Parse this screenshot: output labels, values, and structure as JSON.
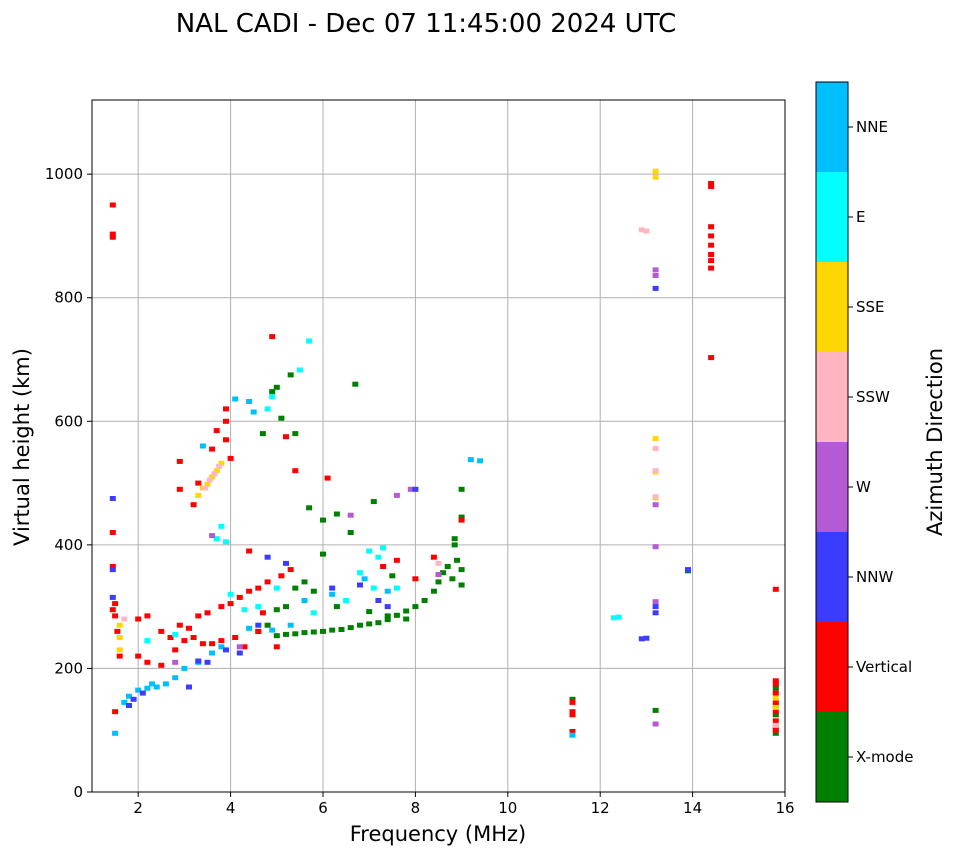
{
  "chart_data": {
    "type": "scatter",
    "title": "NAL CADI - Dec 07 11:45:00 2024 UTC",
    "xlabel": "Frequency (MHz)",
    "ylabel": "Virtual height (km)",
    "xlim": [
      1,
      16
    ],
    "ylim": [
      0,
      1120
    ],
    "xticks": [
      2,
      4,
      6,
      8,
      10,
      12,
      14,
      16
    ],
    "yticks": [
      0,
      200,
      400,
      600,
      800,
      1000
    ],
    "grid": true,
    "colorbar": {
      "label": "Azimuth Direction",
      "categories": [
        {
          "name": "NNE",
          "color": "#00bfff"
        },
        {
          "name": "E",
          "color": "#00ffff"
        },
        {
          "name": "SSE",
          "color": "#ffd700"
        },
        {
          "name": "SSW",
          "color": "#ffb6c1"
        },
        {
          "name": "W",
          "color": "#b45ad2"
        },
        {
          "name": "NNW",
          "color": "#3c3cff"
        },
        {
          "name": "Vertical",
          "color": "#ff0000"
        },
        {
          "name": "X-mode",
          "color": "#008000"
        }
      ]
    },
    "series": [
      {
        "name": "X-mode",
        "points": [
          [
            5.0,
            253
          ],
          [
            5.2,
            255
          ],
          [
            5.4,
            256
          ],
          [
            5.6,
            258
          ],
          [
            5.8,
            259
          ],
          [
            6.0,
            260
          ],
          [
            6.2,
            262
          ],
          [
            6.4,
            263
          ],
          [
            6.6,
            266
          ],
          [
            6.8,
            270
          ],
          [
            7.0,
            272
          ],
          [
            7.2,
            274
          ],
          [
            7.4,
            279
          ],
          [
            7.6,
            286
          ],
          [
            7.8,
            293
          ],
          [
            8.0,
            300
          ],
          [
            8.2,
            310
          ],
          [
            8.4,
            325
          ],
          [
            8.5,
            340
          ],
          [
            8.6,
            355
          ],
          [
            8.7,
            365
          ],
          [
            8.8,
            345
          ],
          [
            8.9,
            375
          ],
          [
            9.0,
            360
          ],
          [
            9.0,
            335
          ],
          [
            8.85,
            400
          ],
          [
            8.85,
            410
          ],
          [
            4.6,
            260
          ],
          [
            4.8,
            270
          ],
          [
            5.0,
            295
          ],
          [
            5.2,
            300
          ],
          [
            5.4,
            330
          ],
          [
            5.6,
            340
          ],
          [
            5.8,
            325
          ],
          [
            6.0,
            385
          ],
          [
            6.3,
            300
          ],
          [
            6.6,
            420
          ],
          [
            7.0,
            292
          ],
          [
            7.4,
            285
          ],
          [
            7.8,
            280
          ],
          [
            5.3,
            675
          ],
          [
            6.7,
            660
          ],
          [
            4.9,
            648
          ],
          [
            5.0,
            655
          ],
          [
            5.1,
            605
          ],
          [
            4.7,
            580
          ],
          [
            5.4,
            580
          ],
          [
            5.7,
            460
          ],
          [
            6.0,
            440
          ],
          [
            6.3,
            450
          ],
          [
            7.1,
            470
          ],
          [
            7.5,
            350
          ],
          [
            9.0,
            490
          ],
          [
            9.0,
            445
          ],
          [
            13.9,
            358
          ],
          [
            11.4,
            150
          ],
          [
            13.2,
            132
          ],
          [
            15.8,
            168
          ],
          [
            15.8,
            140
          ],
          [
            15.8,
            125
          ],
          [
            15.8,
            95
          ]
        ]
      },
      {
        "name": "Vertical",
        "points": [
          [
            1.45,
            950
          ],
          [
            1.45,
            903
          ],
          [
            1.45,
            898
          ],
          [
            1.45,
            420
          ],
          [
            1.45,
            365
          ],
          [
            1.45,
            295
          ],
          [
            1.5,
            305
          ],
          [
            1.5,
            285
          ],
          [
            1.55,
            260
          ],
          [
            1.6,
            220
          ],
          [
            1.5,
            130
          ],
          [
            2.0,
            280
          ],
          [
            2.2,
            285
          ],
          [
            2.5,
            260
          ],
          [
            2.7,
            250
          ],
          [
            2.9,
            270
          ],
          [
            3.1,
            265
          ],
          [
            3.3,
            285
          ],
          [
            3.5,
            290
          ],
          [
            3.8,
            300
          ],
          [
            4.0,
            305
          ],
          [
            4.2,
            315
          ],
          [
            4.4,
            325
          ],
          [
            4.6,
            330
          ],
          [
            4.8,
            340
          ],
          [
            5.1,
            350
          ],
          [
            5.3,
            360
          ],
          [
            2.0,
            220
          ],
          [
            2.2,
            210
          ],
          [
            2.5,
            205
          ],
          [
            2.8,
            230
          ],
          [
            3.0,
            245
          ],
          [
            3.2,
            250
          ],
          [
            3.4,
            240
          ],
          [
            3.6,
            240
          ],
          [
            3.8,
            245
          ],
          [
            4.1,
            250
          ],
          [
            4.3,
            235
          ],
          [
            4.6,
            260
          ],
          [
            3.9,
            620
          ],
          [
            3.9,
            600
          ],
          [
            3.7,
            585
          ],
          [
            4.0,
            540
          ],
          [
            3.6,
            555
          ],
          [
            3.3,
            500
          ],
          [
            3.2,
            465
          ],
          [
            2.9,
            535
          ],
          [
            2.9,
            490
          ],
          [
            3.9,
            570
          ],
          [
            4.4,
            390
          ],
          [
            4.7,
            290
          ],
          [
            5.0,
            235
          ],
          [
            5.2,
            575
          ],
          [
            5.4,
            520
          ],
          [
            6.1,
            508
          ],
          [
            7.3,
            365
          ],
          [
            7.6,
            375
          ],
          [
            8.0,
            345
          ],
          [
            8.4,
            380
          ],
          [
            4.9,
            737
          ],
          [
            9.0,
            440
          ],
          [
            11.4,
            145
          ],
          [
            11.4,
            130
          ],
          [
            11.4,
            125
          ],
          [
            11.4,
            98
          ],
          [
            11.4,
            93
          ],
          [
            14.4,
            985
          ],
          [
            14.4,
            980
          ],
          [
            14.4,
            915
          ],
          [
            14.4,
            900
          ],
          [
            14.4,
            885
          ],
          [
            14.4,
            870
          ],
          [
            14.4,
            860
          ],
          [
            14.4,
            848
          ],
          [
            14.4,
            703
          ],
          [
            15.8,
            328
          ],
          [
            15.8,
            180
          ],
          [
            15.8,
            175
          ],
          [
            15.8,
            160
          ],
          [
            15.8,
            145
          ],
          [
            15.8,
            130
          ],
          [
            15.8,
            115
          ],
          [
            15.8,
            105
          ],
          [
            15.8,
            100
          ]
        ]
      },
      {
        "name": "NNE",
        "points": [
          [
            2.0,
            165
          ],
          [
            2.2,
            168
          ],
          [
            2.4,
            170
          ],
          [
            2.6,
            175
          ],
          [
            1.8,
            155
          ],
          [
            1.7,
            145
          ],
          [
            2.3,
            175
          ],
          [
            2.8,
            185
          ],
          [
            3.0,
            200
          ],
          [
            3.3,
            210
          ],
          [
            3.6,
            225
          ],
          [
            3.8,
            235
          ],
          [
            4.4,
            265
          ],
          [
            4.9,
            262
          ],
          [
            5.3,
            270
          ],
          [
            6.2,
            320
          ],
          [
            6.9,
            345
          ],
          [
            7.4,
            325
          ],
          [
            5.6,
            310
          ],
          [
            4.1,
            636
          ],
          [
            4.4,
            632
          ],
          [
            4.5,
            615
          ],
          [
            9.2,
            538
          ],
          [
            9.4,
            536
          ],
          [
            11.4,
            92
          ],
          [
            3.4,
            560
          ],
          [
            1.5,
            95
          ]
        ]
      },
      {
        "name": "E",
        "points": [
          [
            5.5,
            683
          ],
          [
            5.7,
            730
          ],
          [
            4.8,
            620
          ],
          [
            4.9,
            640
          ],
          [
            3.8,
            430
          ],
          [
            3.9,
            405
          ],
          [
            3.7,
            410
          ],
          [
            4.0,
            320
          ],
          [
            4.3,
            295
          ],
          [
            7.0,
            390
          ],
          [
            7.2,
            380
          ],
          [
            7.3,
            395
          ],
          [
            6.8,
            355
          ],
          [
            7.1,
            330
          ],
          [
            5.8,
            290
          ],
          [
            6.5,
            310
          ],
          [
            12.4,
            283
          ],
          [
            12.3,
            282
          ],
          [
            5.0,
            330
          ],
          [
            4.6,
            300
          ],
          [
            2.8,
            255
          ],
          [
            2.2,
            245
          ],
          [
            7.6,
            330
          ]
        ]
      },
      {
        "name": "SSE",
        "points": [
          [
            3.3,
            480
          ],
          [
            3.4,
            492
          ],
          [
            3.5,
            498
          ],
          [
            3.6,
            510
          ],
          [
            3.7,
            520
          ],
          [
            3.8,
            532
          ],
          [
            1.6,
            270
          ],
          [
            1.6,
            250
          ],
          [
            1.6,
            230
          ],
          [
            13.2,
            1005
          ],
          [
            13.2,
            995
          ],
          [
            13.2,
            572
          ],
          [
            13.2,
            518
          ],
          [
            13.2,
            476
          ],
          [
            15.8,
            152
          ],
          [
            15.8,
            137
          ]
        ]
      },
      {
        "name": "SSW",
        "points": [
          [
            3.45,
            492
          ],
          [
            3.55,
            505
          ],
          [
            3.65,
            515
          ],
          [
            3.75,
            527
          ],
          [
            12.9,
            910
          ],
          [
            13.0,
            908
          ],
          [
            13.2,
            556
          ],
          [
            13.2,
            520
          ],
          [
            13.2,
            478
          ],
          [
            15.8,
            108
          ],
          [
            1.7,
            280
          ],
          [
            8.5,
            370
          ]
        ]
      },
      {
        "name": "W",
        "points": [
          [
            13.2,
            845
          ],
          [
            13.2,
            836
          ],
          [
            13.2,
            465
          ],
          [
            13.2,
            397
          ],
          [
            13.2,
            308
          ],
          [
            13.2,
            110
          ],
          [
            6.6,
            448
          ],
          [
            7.6,
            480
          ],
          [
            7.9,
            490
          ],
          [
            8.5,
            352
          ],
          [
            3.6,
            415
          ],
          [
            4.2,
            235
          ],
          [
            2.8,
            210
          ]
        ]
      },
      {
        "name": "NNW",
        "points": [
          [
            1.45,
            475
          ],
          [
            1.45,
            360
          ],
          [
            1.45,
            315
          ],
          [
            1.8,
            140
          ],
          [
            1.9,
            150
          ],
          [
            2.1,
            160
          ],
          [
            3.1,
            170
          ],
          [
            3.3,
            212
          ],
          [
            3.5,
            210
          ],
          [
            3.9,
            230
          ],
          [
            4.2,
            225
          ],
          [
            4.6,
            270
          ],
          [
            4.8,
            380
          ],
          [
            5.2,
            370
          ],
          [
            6.2,
            330
          ],
          [
            6.8,
            335
          ],
          [
            7.2,
            310
          ],
          [
            7.4,
            300
          ],
          [
            8.0,
            490
          ],
          [
            13.2,
            815
          ],
          [
            13.2,
            300
          ],
          [
            13.2,
            290
          ],
          [
            12.9,
            248
          ],
          [
            13.0,
            249
          ],
          [
            13.9,
            360
          ]
        ]
      }
    ]
  }
}
